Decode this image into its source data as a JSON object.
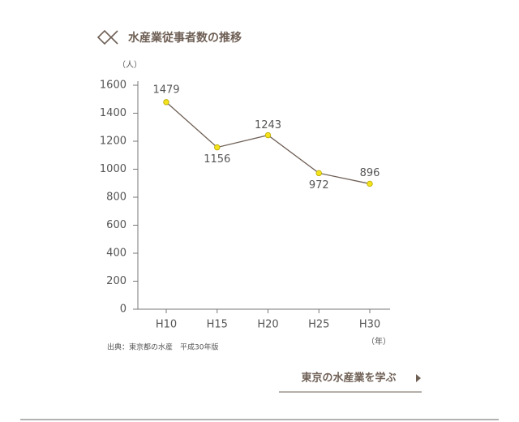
{
  "chart_data": {
    "type": "line",
    "title": "水産業従事者数の推移",
    "y_label": "（人）",
    "x_label": "（年）",
    "categories": [
      "H10",
      "H15",
      "H20",
      "H25",
      "H30"
    ],
    "series": [
      {
        "name": "水産業従事者数",
        "color": "#6e5f55",
        "marker_color": "#f3e21c",
        "values": [
          1479,
          1156,
          1243,
          972,
          896
        ]
      }
    ],
    "ylim": [
      0,
      1600
    ],
    "yticks": [
      0,
      200,
      400,
      600,
      800,
      1000,
      1200,
      1400,
      1600
    ],
    "source": "出典：東京都の水産　平成30年版"
  },
  "link": {
    "text": "東京の水産業を学ぶ"
  }
}
